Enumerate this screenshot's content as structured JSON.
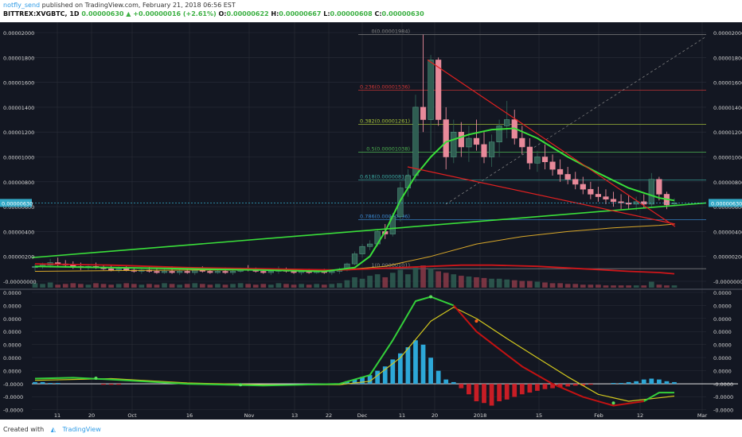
{
  "header": {
    "author": "notfly_send",
    "published_text": "published on TradingView.com, February 21, 2018 06:56 EST",
    "symbol": "BITTREX:XVGBTC, 1D",
    "last": "0.00000630",
    "change": "+0.00000016 (+2.61%)",
    "open_label": "O:",
    "open": "0.00000622",
    "high_label": "H:",
    "high": "0.00000667",
    "low_label": "L:",
    "low": "0.00000608",
    "close_label": "C:",
    "close": "0.00000630"
  },
  "footer": {
    "created_with": "Created with",
    "brand": "TradingView"
  },
  "colors": {
    "background": "#131722",
    "grid": "#2a2e39",
    "candle_up": "#2f5e52",
    "candle_down": "#e88a9a",
    "ma_green": "#3adf3a",
    "ma_red": "#d0161a",
    "ma_orange": "#d9a82a",
    "macd_green": "#34d03a",
    "macd_signal": "#d2c81e",
    "macd_red": "#c31212",
    "hist_pos": "#2da8d8",
    "hist_neg": "#c81d25",
    "price_marker_bg": "#33a9c7"
  },
  "chart_data": [
    {
      "type": "candlestick",
      "panel": "price",
      "y_tick_labels": [
        "0.00002000",
        "0.00001800",
        "0.00001600",
        "0.00001400",
        "0.00001200",
        "0.00001000",
        "0.00000800",
        "0.00000600",
        "0.00000400",
        "0.00000200",
        "-0.00000000"
      ],
      "x_tick_labels": [
        "11",
        "20",
        "Oct",
        "16",
        "Nov",
        "13",
        "22",
        "Dec",
        "11",
        "20",
        "2018",
        "15",
        "Feb",
        "12",
        "Mar"
      ],
      "current_price_label": "0.00000630",
      "ylim": [
        0,
        2e-05
      ],
      "ohlc": [
        [
          1.1e-06,
          1.4e-06,
          8e-07,
          1.2e-06
        ],
        [
          1.2e-06,
          1.5e-06,
          1e-06,
          1.3e-06
        ],
        [
          1.3e-06,
          1.8e-06,
          1.1e-06,
          1.5e-06
        ],
        [
          1.5e-06,
          1.9e-06,
          1.2e-06,
          1.4e-06
        ],
        [
          1.4e-06,
          1.7e-06,
          1.1e-06,
          1.3e-06
        ],
        [
          1.3e-06,
          1.6e-06,
          1e-06,
          1.2e-06
        ],
        [
          1.2e-06,
          1.5e-06,
          9e-07,
          1.1e-06
        ],
        [
          1.1e-06,
          1.4e-06,
          9e-07,
          1.2e-06
        ],
        [
          1.2e-06,
          1.5e-06,
          1e-06,
          1.1e-06
        ],
        [
          1.1e-06,
          1.3e-06,
          9e-07,
          1e-06
        ],
        [
          1e-06,
          1.3e-06,
          8e-07,
          9e-07
        ],
        [
          9e-07,
          1.2e-06,
          7e-07,
          1e-06
        ],
        [
          1e-06,
          1.3e-06,
          8e-07,
          9e-07
        ],
        [
          9e-07,
          1.1e-06,
          7e-07,
          8e-07
        ],
        [
          8e-07,
          1.1e-06,
          6e-07,
          9e-07
        ],
        [
          9e-07,
          1.2e-06,
          7e-07,
          8e-07
        ],
        [
          8e-07,
          1e-06,
          6e-07,
          7e-07
        ],
        [
          7e-07,
          1e-06,
          6e-07,
          8e-07
        ],
        [
          8e-07,
          1.2e-06,
          6e-07,
          7e-07
        ],
        [
          7e-07,
          1e-06,
          5e-07,
          8e-07
        ],
        [
          8e-07,
          1.1e-06,
          6e-07,
          7e-07
        ],
        [
          7e-07,
          1e-06,
          5e-07,
          9e-07
        ],
        [
          9e-07,
          1.2e-06,
          7e-07,
          8e-07
        ],
        [
          8e-07,
          1e-06,
          6e-07,
          7e-07
        ],
        [
          7e-07,
          1e-06,
          6e-07,
          8e-07
        ],
        [
          8e-07,
          1.1e-06,
          6e-07,
          7e-07
        ],
        [
          7e-07,
          9e-07,
          5e-07,
          8e-07
        ],
        [
          8e-07,
          1.1e-06,
          7e-07,
          1e-06
        ],
        [
          1e-06,
          1.3e-06,
          8e-07,
          9e-07
        ],
        [
          9e-07,
          1.1e-06,
          7e-07,
          8e-07
        ],
        [
          8e-07,
          1e-06,
          6e-07,
          7e-07
        ],
        [
          7e-07,
          9e-07,
          5e-07,
          8e-07
        ],
        [
          8e-07,
          1.2e-06,
          6e-07,
          9e-07
        ],
        [
          9e-07,
          1.1e-06,
          7e-07,
          8e-07
        ],
        [
          8e-07,
          1e-06,
          6e-07,
          7e-07
        ],
        [
          7e-07,
          9e-07,
          5e-07,
          8e-07
        ],
        [
          8e-07,
          1e-06,
          6e-07,
          7e-07
        ],
        [
          7e-07,
          9e-07,
          6e-07,
          8e-07
        ],
        [
          8e-07,
          1e-06,
          6e-07,
          7e-07
        ],
        [
          7e-07,
          9e-07,
          5e-07,
          8e-07
        ],
        [
          8e-07,
          1.1e-06,
          6e-07,
          9e-07
        ],
        [
          9e-07,
          1.5e-06,
          8e-07,
          1.4e-06
        ],
        [
          1.4e-06,
          2.4e-06,
          1.3e-06,
          2.2e-06
        ],
        [
          2.2e-06,
          3e-06,
          1.9e-06,
          2.8e-06
        ],
        [
          2.8e-06,
          3.3e-06,
          2.5e-06,
          3e-06
        ],
        [
          3e-06,
          4.2e-06,
          2.8e-06,
          4e-06
        ],
        [
          4e-06,
          4.6e-06,
          3.4e-06,
          3.8e-06
        ],
        [
          3.8e-06,
          5.5e-06,
          3.6e-06,
          5.2e-06
        ],
        [
          5.2e-06,
          8e-06,
          4.8e-06,
          7.5e-06
        ],
        [
          7.5e-06,
          9e-06,
          6.8e-06,
          8.5e-06
        ],
        [
          8.5e-06,
          1.5e-05,
          8e-06,
          1.4e-05
        ],
        [
          1.4e-05,
          1.984e-05,
          1.2e-05,
          1.3e-05
        ],
        [
          1.3e-05,
          1.82e-05,
          1.05e-05,
          1.78e-05
        ],
        [
          1.78e-05,
          1.8e-05,
          1.25e-05,
          1.3e-05
        ],
        [
          1.3e-05,
          1.4e-05,
          9e-06,
          1e-05
        ],
        [
          1e-05,
          1.3e-05,
          9.5e-06,
          1.2e-05
        ],
        [
          1.2e-05,
          1.28e-05,
          1e-05,
          1.08e-05
        ],
        [
          1.08e-05,
          1.25e-05,
          9.6e-06,
          1.15e-05
        ],
        [
          1.15e-05,
          1.3e-05,
          1.05e-05,
          1.1e-05
        ],
        [
          1.1e-05,
          1.2e-05,
          9.5e-06,
          1e-05
        ],
        [
          1e-05,
          1.18e-05,
          9.2e-06,
          1.12e-05
        ],
        [
          1.12e-05,
          1.3e-05,
          1e-05,
          1.25e-05
        ],
        [
          1.25e-05,
          1.45e-05,
          1.15e-05,
          1.3e-05
        ],
        [
          1.3e-05,
          1.38e-05,
          1.1e-05,
          1.15e-05
        ],
        [
          1.15e-05,
          1.25e-05,
          1.02e-05,
          1.08e-05
        ],
        [
          1.08e-05,
          1.15e-05,
          9e-06,
          9.5e-06
        ],
        [
          9.5e-06,
          1.05e-05,
          8.8e-06,
          1e-05
        ],
        [
          1e-05,
          1.1e-05,
          9e-06,
          9.6e-06
        ],
        [
          9.6e-06,
          1.02e-05,
          8.5e-06,
          9e-06
        ],
        [
          9e-06,
          9.8e-06,
          8e-06,
          8.6e-06
        ],
        [
          8.6e-06,
          9.2e-06,
          7.8e-06,
          8.2e-06
        ],
        [
          8.2e-06,
          8.8e-06,
          7.4e-06,
          7.8e-06
        ],
        [
          7.8e-06,
          8.4e-06,
          7e-06,
          7.4e-06
        ],
        [
          7.4e-06,
          8e-06,
          6.6e-06,
          7e-06
        ],
        [
          7e-06,
          7.6e-06,
          6.4e-06,
          6.8e-06
        ],
        [
          6.8e-06,
          7.4e-06,
          6.2e-06,
          6.6e-06
        ],
        [
          6.6e-06,
          7.2e-06,
          6e-06,
          6.4e-06
        ],
        [
          6.4e-06,
          7e-06,
          5.8e-06,
          6.3e-06
        ],
        [
          6.3e-06,
          6.9e-06,
          5.8e-06,
          6.2e-06
        ],
        [
          6.2e-06,
          6.8e-06,
          5.7e-06,
          6.4e-06
        ],
        [
          6.4e-06,
          7e-06,
          5.9e-06,
          6.2e-06
        ],
        [
          6.2e-06,
          8.7e-06,
          6e-06,
          8.2e-06
        ],
        [
          8.2e-06,
          8.4e-06,
          6.5e-06,
          7e-06
        ],
        [
          7e-06,
          7.2e-06,
          5.8e-06,
          6.14e-06
        ],
        [
          6.22e-06,
          6.67e-06,
          6.08e-06,
          6.3e-06
        ]
      ],
      "ma_green_points": [
        [
          0,
          1.2e-06
        ],
        [
          10,
          1.1e-06
        ],
        [
          20,
          1e-06
        ],
        [
          30,
          9e-07
        ],
        [
          38,
          8e-07
        ],
        [
          42,
          1.1e-06
        ],
        [
          44,
          2e-06
        ],
        [
          46,
          4e-06
        ],
        [
          48,
          6.5e-06
        ],
        [
          50,
          8.5e-06
        ],
        [
          52,
          1e-05
        ],
        [
          54,
          1.12e-05
        ],
        [
          57,
          1.18e-05
        ],
        [
          60,
          1.22e-05
        ],
        [
          63,
          1.23e-05
        ],
        [
          66,
          1.15e-05
        ],
        [
          70,
          1e-05
        ],
        [
          74,
          8.7e-06
        ],
        [
          78,
          7.5e-06
        ],
        [
          82,
          6.7e-06
        ],
        [
          84,
          6.5e-06
        ]
      ],
      "ma_red_points": [
        [
          0,
          1.4e-06
        ],
        [
          10,
          1.3e-06
        ],
        [
          20,
          1.1e-06
        ],
        [
          30,
          1e-06
        ],
        [
          40,
          9e-07
        ],
        [
          44,
          1e-06
        ],
        [
          48,
          1.1e-06
        ],
        [
          52,
          1.2e-06
        ],
        [
          56,
          1.3e-06
        ],
        [
          60,
          1.3e-06
        ],
        [
          66,
          1.2e-06
        ],
        [
          72,
          1e-06
        ],
        [
          78,
          8e-07
        ],
        [
          82,
          7e-07
        ],
        [
          84,
          6e-07
        ]
      ],
      "ma_orange_points": [
        [
          0,
          8e-07
        ],
        [
          20,
          9e-07
        ],
        [
          40,
          9e-07
        ],
        [
          46,
          1.2e-06
        ],
        [
          52,
          2e-06
        ],
        [
          58,
          3e-06
        ],
        [
          64,
          3.6e-06
        ],
        [
          70,
          4e-06
        ],
        [
          76,
          4.3e-06
        ],
        [
          82,
          4.5e-06
        ],
        [
          84,
          4.6e-06
        ]
      ],
      "volume": [
        6,
        5,
        7,
        4,
        5,
        6,
        5,
        4,
        6,
        5,
        4,
        5,
        6,
        5,
        4,
        5,
        4,
        6,
        5,
        4,
        5,
        6,
        5,
        4,
        5,
        4,
        5,
        6,
        5,
        4,
        5,
        4,
        6,
        5,
        4,
        5,
        4,
        5,
        4,
        5,
        6,
        10,
        14,
        12,
        16,
        18,
        14,
        20,
        24,
        18,
        28,
        30,
        26,
        22,
        20,
        18,
        16,
        15,
        14,
        13,
        12,
        12,
        11,
        10,
        9,
        9,
        8,
        7,
        6,
        6,
        5,
        5,
        4,
        4,
        4,
        3,
        3,
        3,
        3,
        3,
        3,
        8,
        4,
        3,
        3
      ],
      "fib_levels": [
        {
          "ratio": "0",
          "label": "0(0.00001984)",
          "value": 1.984e-05,
          "color": "#888888"
        },
        {
          "ratio": "0.236",
          "label": "0.236(0.00001536)",
          "value": 1.536e-05,
          "color": "#d23636"
        },
        {
          "ratio": "0.382",
          "label": "0.382(0.00001261)",
          "value": 1.261e-05,
          "color": "#aac83a"
        },
        {
          "ratio": "0.5",
          "label": "0.5(0.00001038)",
          "value": 1.038e-05,
          "color": "#4caf50"
        },
        {
          "ratio": "0.618",
          "label": "0.618(0.00000814)",
          "value": 8.14e-06,
          "color": "#3aa8a0"
        },
        {
          "ratio": "0.786",
          "label": "0.786(0.00000496)",
          "value": 4.96e-06,
          "color": "#3a8ad2"
        },
        {
          "ratio": "1",
          "label": "1(0.00000101)",
          "value": 1.01e-06,
          "color": "#888888"
        }
      ]
    },
    {
      "type": "macd",
      "panel": "oscillator",
      "y_tick_labels": [
        "0.0000",
        "0.0000",
        "0.0000",
        "0.0000",
        "0.0000",
        "0.0000",
        "0.0000",
        "-0.0000",
        "-0.0000",
        "-0.0000"
      ],
      "macd_points": [
        [
          0,
          0.06
        ],
        [
          5,
          0.07
        ],
        [
          10,
          0.05
        ],
        [
          20,
          0.0
        ],
        [
          30,
          -0.02
        ],
        [
          40,
          0.0
        ],
        [
          44,
          0.1
        ],
        [
          47,
          0.5
        ],
        [
          50,
          0.95
        ],
        [
          52,
          1.0
        ],
        [
          55,
          0.9
        ],
        [
          58,
          0.6
        ],
        [
          61,
          0.4
        ],
        [
          64,
          0.2
        ],
        [
          68,
          0.0
        ],
        [
          72,
          -0.15
        ],
        [
          76,
          -0.25
        ],
        [
          80,
          -0.2
        ],
        [
          82,
          -0.1
        ],
        [
          84,
          -0.1
        ]
      ],
      "signal_points": [
        [
          0,
          0.04
        ],
        [
          10,
          0.06
        ],
        [
          20,
          0.01
        ],
        [
          30,
          -0.01
        ],
        [
          40,
          -0.01
        ],
        [
          44,
          0.03
        ],
        [
          48,
          0.3
        ],
        [
          52,
          0.72
        ],
        [
          55,
          0.88
        ],
        [
          58,
          0.75
        ],
        [
          62,
          0.52
        ],
        [
          66,
          0.3
        ],
        [
          70,
          0.08
        ],
        [
          74,
          -0.12
        ],
        [
          78,
          -0.2
        ],
        [
          82,
          -0.16
        ],
        [
          84,
          -0.14
        ]
      ],
      "histogram": [
        0.02,
        0.02,
        0.01,
        0.01,
        0.0,
        0.0,
        0.0,
        0.0,
        0.0,
        -0.01,
        -0.01,
        -0.01,
        0.0,
        0.0,
        0.0,
        0.0,
        0.0,
        0.0,
        0.0,
        0.0,
        0.0,
        0.0,
        0.0,
        0.0,
        0.0,
        0.0,
        0.0,
        0.0,
        0.0,
        0.0,
        0.0,
        0.0,
        0.0,
        0.0,
        0.0,
        0.0,
        0.0,
        0.0,
        0.0,
        0.0,
        0.0,
        0.03,
        0.05,
        0.08,
        0.1,
        0.15,
        0.2,
        0.28,
        0.35,
        0.42,
        0.5,
        0.45,
        0.3,
        0.15,
        0.05,
        0.02,
        -0.05,
        -0.12,
        -0.2,
        -0.22,
        -0.25,
        -0.2,
        -0.18,
        -0.15,
        -0.12,
        -0.1,
        -0.08,
        -0.06,
        -0.05,
        -0.04,
        -0.03,
        -0.02,
        -0.02,
        -0.01,
        0.0,
        0.0,
        0.01,
        0.01,
        0.02,
        0.03,
        0.05,
        0.06,
        0.05,
        0.03,
        0.02
      ],
      "ylim": [
        -0.3,
        1.05
      ]
    }
  ]
}
